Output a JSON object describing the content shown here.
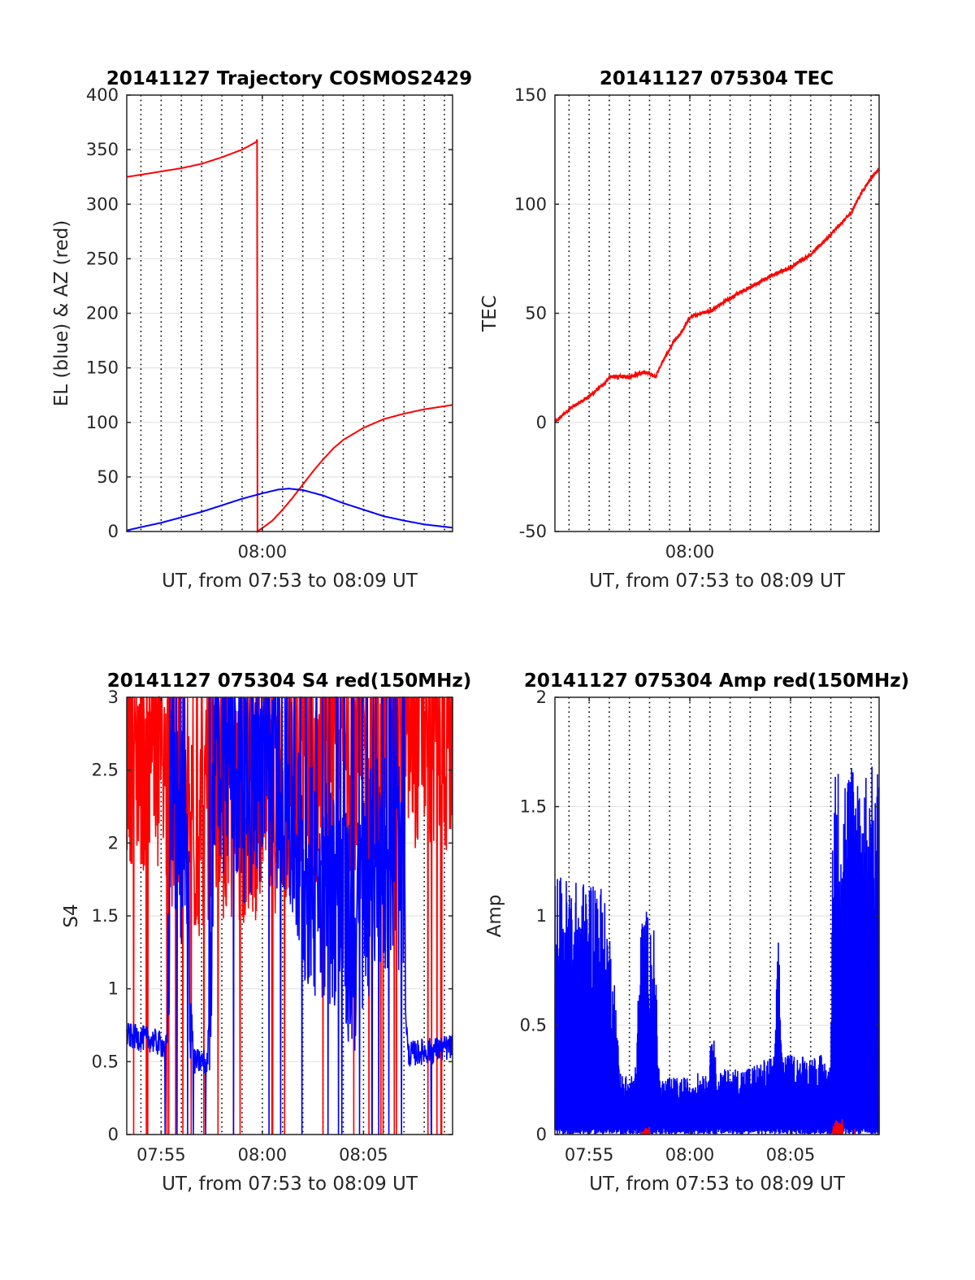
{
  "chart_data": [
    {
      "type": "line",
      "title": "20141127 Trajectory COSMOS2429",
      "xlabel": "UT, from 07:53 to 08:09 UT",
      "ylabel": "EL (blue) & AZ (red)",
      "x_range_minutes": [
        473.3,
        489.4
      ],
      "ylim": [
        0,
        400
      ],
      "yticks": [
        0,
        50,
        100,
        150,
        200,
        250,
        300,
        350,
        400
      ],
      "xticks": [
        {
          "value": 480,
          "label": "08:00"
        }
      ],
      "grid": "dotted vertical every minute, light horizontal",
      "series": [
        {
          "color": "#ff0000",
          "style": "smooth",
          "points": [
            [
              473.3,
              325
            ],
            [
              474,
              327
            ],
            [
              475,
              330
            ],
            [
              476,
              333
            ],
            [
              477,
              337
            ],
            [
              478,
              343
            ],
            [
              479,
              350
            ],
            [
              479.7,
              357
            ],
            [
              479.75,
              360
            ],
            [
              479.76,
              0
            ],
            [
              480.5,
              10
            ],
            [
              481,
              20
            ],
            [
              481.5,
              31
            ],
            [
              482,
              43
            ],
            [
              482.5,
              55
            ],
            [
              483,
              66
            ],
            [
              483.5,
              76
            ],
            [
              484,
              84
            ],
            [
              485,
              95
            ],
            [
              486,
              103
            ],
            [
              487,
              108
            ],
            [
              488,
              112
            ],
            [
              489.4,
              116
            ]
          ]
        },
        {
          "color": "#0000ff",
          "style": "smooth",
          "points": [
            [
              473.3,
              1
            ],
            [
              474,
              4
            ],
            [
              475,
              8
            ],
            [
              476,
              13
            ],
            [
              477,
              18
            ],
            [
              478,
              24
            ],
            [
              479,
              30
            ],
            [
              480,
              35
            ],
            [
              480.8,
              38.5
            ],
            [
              481.3,
              39.3
            ],
            [
              482,
              38
            ],
            [
              483,
              33
            ],
            [
              484,
              26
            ],
            [
              485,
              20
            ],
            [
              486,
              14
            ],
            [
              487,
              10
            ],
            [
              488,
              6.5
            ],
            [
              489.4,
              3.5
            ]
          ]
        }
      ]
    },
    {
      "type": "line",
      "title": "20141127 075304 TEC",
      "xlabel": "UT, from 07:53 to 08:09 UT",
      "ylabel": "TEC",
      "x_range_minutes": [
        473.3,
        489.4
      ],
      "ylim": [
        -50,
        150
      ],
      "yticks": [
        -50,
        0,
        50,
        100,
        150
      ],
      "xticks": [
        {
          "value": 480,
          "label": "08:00"
        }
      ],
      "grid": "dotted vertical every minute, light horizontal",
      "series": [
        {
          "color": "#ff0000",
          "style": "noisy",
          "noise": 0.8,
          "points": [
            [
              473.3,
              0
            ],
            [
              474,
              6
            ],
            [
              475,
              12
            ],
            [
              475.8,
              18
            ],
            [
              476,
              21
            ],
            [
              477,
              21
            ],
            [
              477.8,
              23
            ],
            [
              478.3,
              21
            ],
            [
              478.6,
              27
            ],
            [
              479.2,
              37
            ],
            [
              479.5,
              40
            ],
            [
              480,
              48
            ],
            [
              480.5,
              50
            ],
            [
              481,
              51
            ],
            [
              482,
              57
            ],
            [
              483,
              62
            ],
            [
              484,
              67
            ],
            [
              485,
              71
            ],
            [
              486,
              77
            ],
            [
              487,
              86
            ],
            [
              488,
              96
            ],
            [
              488.5,
              105
            ],
            [
              489,
              112
            ],
            [
              489.4,
              116
            ]
          ]
        }
      ]
    },
    {
      "type": "line",
      "title": "20141127 075304 S4 red(150MHz)",
      "xlabel": "UT, from 07:53 to 08:09 UT",
      "ylabel": "S4",
      "x_range_minutes": [
        473.3,
        489.4
      ],
      "ylim": [
        0,
        3
      ],
      "yticks": [
        0,
        0.5,
        1,
        1.5,
        2,
        2.5,
        3
      ],
      "xticks": [
        {
          "value": 475,
          "label": "07:55"
        },
        {
          "value": 480,
          "label": "08:00"
        },
        {
          "value": 485,
          "label": "08:05"
        }
      ],
      "grid": "dotted vertical every minute, light horizontal",
      "series": [
        {
          "color": "#ff0000",
          "style": "spiky",
          "min": 1.3,
          "max": 3.0,
          "drops": 28,
          "points": [
            [
              473.3,
              2.6
            ],
            [
              475,
              2.4
            ],
            [
              476.5,
              2.0
            ],
            [
              478,
              2.1
            ],
            [
              480,
              2.2
            ],
            [
              482,
              2.3
            ],
            [
              484,
              2.5
            ],
            [
              486,
              2.6
            ],
            [
              488,
              2.7
            ],
            [
              489.4,
              2.6
            ]
          ]
        },
        {
          "color": "#0000ff",
          "style": "spiky",
          "min": 0.4,
          "max": 3.0,
          "drops": 18,
          "points": [
            [
              473.3,
              0.68
            ],
            [
              474.5,
              0.65
            ],
            [
              475.3,
              0.6
            ],
            [
              475.5,
              2.2
            ],
            [
              476.2,
              1.8
            ],
            [
              476.6,
              0.5
            ],
            [
              477.3,
              0.5
            ],
            [
              477.7,
              2.6
            ],
            [
              479,
              2.3
            ],
            [
              481,
              2.4
            ],
            [
              482,
              1.7
            ],
            [
              483.5,
              1.6
            ],
            [
              484.5,
              1.2
            ],
            [
              485.5,
              1.8
            ],
            [
              486.7,
              1.9
            ],
            [
              487.2,
              0.55
            ],
            [
              488,
              0.57
            ],
            [
              489.4,
              0.6
            ]
          ]
        }
      ]
    },
    {
      "type": "line",
      "title": "20141127 075304 Amp red(150MHz)",
      "xlabel": "UT, from 07:53 to 08:09 UT",
      "ylabel": "Amp",
      "x_range_minutes": [
        473.3,
        489.4
      ],
      "ylim": [
        0,
        2
      ],
      "yticks": [
        0,
        0.5,
        1,
        1.5,
        2
      ],
      "xticks": [
        {
          "value": 475,
          "label": "07:55"
        },
        {
          "value": 480,
          "label": "08:00"
        },
        {
          "value": 485,
          "label": "08:05"
        }
      ],
      "grid": "dotted vertical every minute, light horizontal",
      "series": [
        {
          "color": "#0000ff",
          "style": "filled-noise",
          "points": [
            [
              473.3,
              1.15
            ],
            [
              474.5,
              1.1
            ],
            [
              475.5,
              1.15
            ],
            [
              476.2,
              0.8
            ],
            [
              476.5,
              0.3
            ],
            [
              477,
              0.25
            ],
            [
              477.3,
              0.3
            ],
            [
              477.6,
              1.0
            ],
            [
              478.2,
              0.95
            ],
            [
              478.5,
              0.25
            ],
            [
              480,
              0.25
            ],
            [
              481,
              0.3
            ],
            [
              481.1,
              0.7
            ],
            [
              481.3,
              0.28
            ],
            [
              483,
              0.3
            ],
            [
              484.2,
              0.35
            ],
            [
              484.4,
              0.9
            ],
            [
              484.6,
              0.35
            ],
            [
              486.5,
              0.35
            ],
            [
              487,
              0.3
            ],
            [
              487.1,
              1.6
            ],
            [
              488,
              1.65
            ],
            [
              489.4,
              1.6
            ]
          ]
        },
        {
          "color": "#ff0000",
          "style": "small-spikes",
          "points": [
            [
              477.6,
              0.02
            ],
            [
              478,
              0.03
            ],
            [
              487.1,
              0.05
            ],
            [
              487.6,
              0.06
            ],
            [
              488.2,
              0.03
            ]
          ]
        }
      ]
    }
  ]
}
